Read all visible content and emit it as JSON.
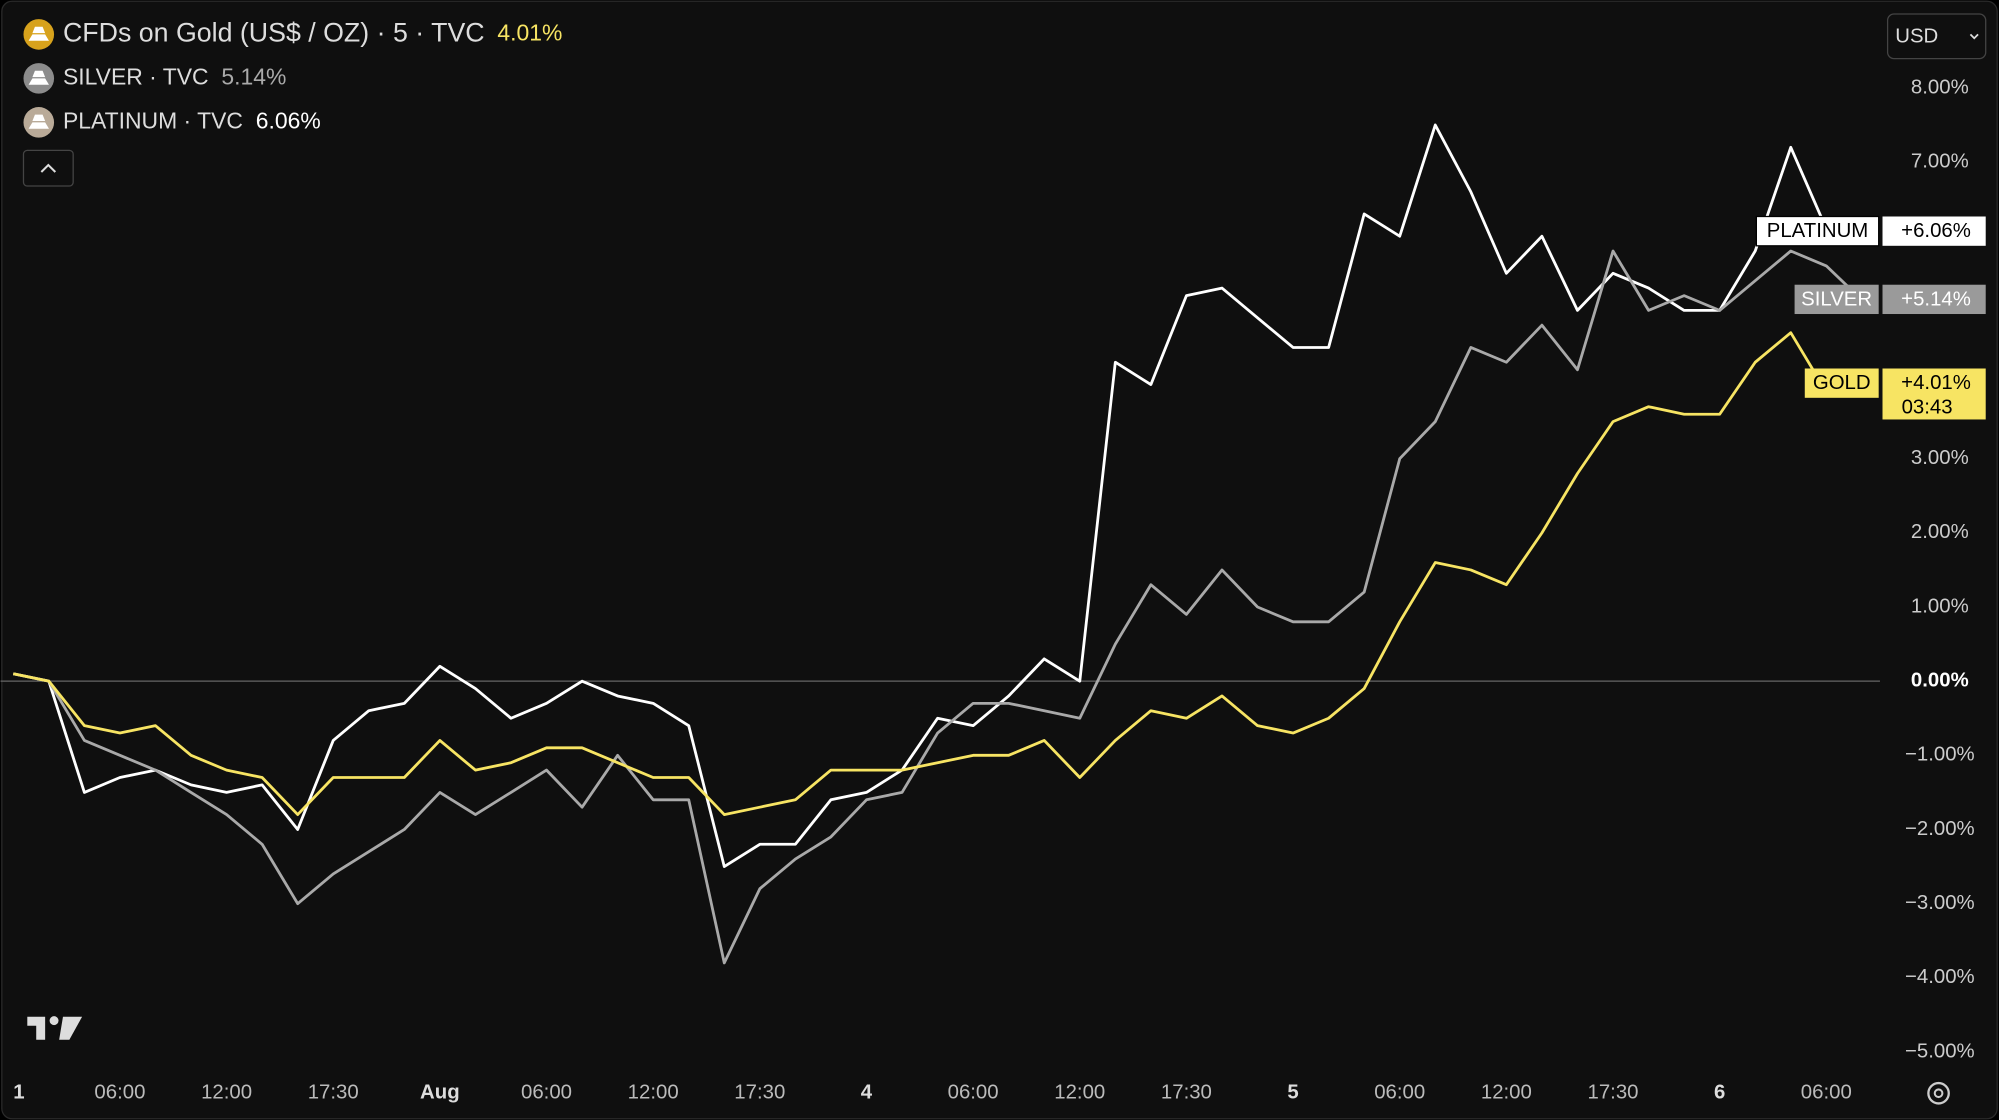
{
  "chart_data": {
    "type": "line",
    "currency": "USD",
    "categories": [
      "1",
      null,
      null,
      "06:00",
      null,
      null,
      "12:00",
      null,
      null,
      "17:30",
      null,
      null,
      "Aug",
      null,
      null,
      "06:00",
      null,
      null,
      "12:00",
      null,
      null,
      "17:30",
      null,
      null,
      "4",
      null,
      null,
      "06:00",
      null,
      null,
      "12:00",
      null,
      null,
      "17:30",
      null,
      null,
      "5",
      null,
      null,
      "06:00",
      null,
      null,
      "12:00",
      null,
      null,
      "17:30",
      null,
      null,
      "6",
      null,
      null,
      "06:00",
      null
    ],
    "ylim": [
      -5.3,
      9.1
    ],
    "yticks": [
      {
        "value": -5,
        "label": "−5.00%"
      },
      {
        "value": -4,
        "label": "−4.00%"
      },
      {
        "value": -3,
        "label": "−3.00%"
      },
      {
        "value": -2,
        "label": "−2.00%"
      },
      {
        "value": -1,
        "label": "−1.00%"
      },
      {
        "value": 0,
        "label": "0.00%"
      },
      {
        "value": 1,
        "label": "1.00%"
      },
      {
        "value": 2,
        "label": "2.00%"
      },
      {
        "value": 3,
        "label": "3.00%"
      },
      {
        "value": 7,
        "label": "7.00%"
      },
      {
        "value": 8,
        "label": "8.00%"
      }
    ],
    "series": [
      {
        "name": "GOLD",
        "legend": "CFDs on Gold (US$ / OZ) · 5 · TVC",
        "change": "4.01%",
        "tag": "+4.01%",
        "countdown": "03:43",
        "color": "#f7e463",
        "values": [
          0.1,
          0.0,
          -0.6,
          -0.7,
          -0.6,
          -1.0,
          -1.2,
          -1.3,
          -1.8,
          -1.3,
          -1.3,
          -1.3,
          -0.8,
          -1.2,
          -1.1,
          -0.9,
          -0.9,
          -1.1,
          -1.3,
          -1.3,
          -1.8,
          -1.7,
          -1.6,
          -1.2,
          -1.2,
          -1.2,
          -1.1,
          -1.0,
          -1.0,
          -0.8,
          -1.3,
          -0.8,
          -0.4,
          -0.5,
          -0.2,
          -0.6,
          -0.7,
          -0.5,
          -0.1,
          0.8,
          1.6,
          1.5,
          1.3,
          2.0,
          2.8,
          3.5,
          3.7,
          3.6,
          3.6,
          4.3,
          4.7,
          3.9,
          4.01
        ]
      },
      {
        "name": "SILVER",
        "legend": "SILVER · TVC",
        "change": "5.14%",
        "tag": "+5.14%",
        "color": "#a9a9a9",
        "values": [
          0.1,
          0.0,
          -0.8,
          -1.0,
          -1.2,
          -1.5,
          -1.8,
          -2.2,
          -3.0,
          -2.6,
          -2.3,
          -2.0,
          -1.5,
          -1.8,
          -1.5,
          -1.2,
          -1.7,
          -1.0,
          -1.6,
          -1.6,
          -3.8,
          -2.8,
          -2.4,
          -2.1,
          -1.6,
          -1.5,
          -0.7,
          -0.3,
          -0.3,
          -0.4,
          -0.5,
          0.5,
          1.3,
          0.9,
          1.5,
          1.0,
          0.8,
          0.8,
          1.2,
          3.0,
          3.5,
          4.5,
          4.3,
          4.8,
          4.2,
          5.8,
          5.0,
          5.2,
          5.0,
          5.4,
          5.8,
          5.6,
          5.14
        ]
      },
      {
        "name": "PLATINUM",
        "legend": "PLATINUM · TVC",
        "change": "6.06%",
        "tag": "+6.06%",
        "color": "#ffffff",
        "values": [
          0.1,
          0.0,
          -1.5,
          -1.3,
          -1.2,
          -1.4,
          -1.5,
          -1.4,
          -2.0,
          -0.8,
          -0.4,
          -0.3,
          0.2,
          -0.1,
          -0.5,
          -0.3,
          0.0,
          -0.2,
          -0.3,
          -0.6,
          -2.5,
          -2.2,
          -2.2,
          -1.6,
          -1.5,
          -1.2,
          -0.5,
          -0.6,
          -0.2,
          0.3,
          0.0,
          4.3,
          4.0,
          5.2,
          5.3,
          4.9,
          4.5,
          4.5,
          6.3,
          6.0,
          7.5,
          6.6,
          5.5,
          6.0,
          5.0,
          5.5,
          5.3,
          5.0,
          5.0,
          5.8,
          7.2,
          6.1,
          6.06
        ]
      }
    ]
  }
}
